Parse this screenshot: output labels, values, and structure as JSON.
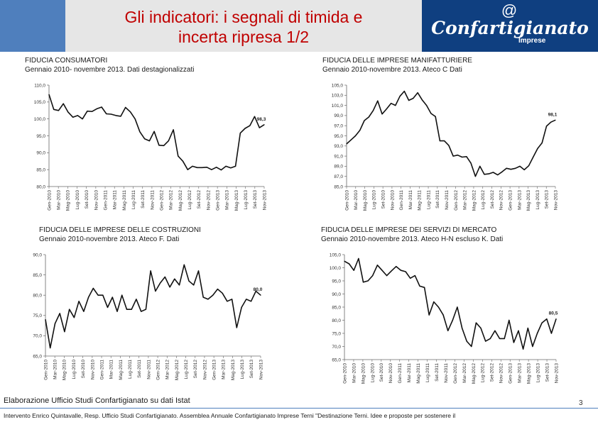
{
  "header": {
    "title": "Gli indicatori: i segnali di timida e\nincerta ripresa 1/2",
    "logo_symbol": "@",
    "logo_text": "Confartigianato",
    "logo_subtext": "Imprese"
  },
  "captions": [
    "FIDUCIA CONSUMATORI\nGennaio 2010- novembre 2013. Dati destagionalizzati",
    "FIDUCIA DELLE IMPRESE MANIFATTURIERE\nGennaio 2010-novembre 2013. Ateco C  Dati",
    "FIDUCIA DELLE IMPRESE DELLE COSTRUZIONI\nGennaio 2010-novembre 2013. Ateco F. Dati",
    "FIDUCIA DELLE IMPRESE DEI SERVIZI DI MERCATO\nGennaio 2010-novembre 2013. Ateco H-N escluso K. Dati"
  ],
  "chart_data": [
    {
      "type": "line",
      "name": "consumatori",
      "x_labels": [
        "Gen-2010",
        "Mar-2010",
        "Mag-2010",
        "Lug-2010",
        "Set-2010",
        "Nov-2010",
        "Gen-2011",
        "Mar-2011",
        "Mag-2011",
        "Lug-2011",
        "Set-2011",
        "Nov-2011",
        "Gen-2012",
        "Mar-2012",
        "Mag-2012",
        "Lug-2012",
        "Set-2012",
        "Nov-2012",
        "Gen-2013",
        "Mar-2013",
        "Mag-2013",
        "Lug-2013",
        "Set-2013",
        "Nov-2013"
      ],
      "values": [
        107.2,
        102.8,
        102.5,
        104.5,
        102.0,
        100.5,
        101.0,
        100.0,
        102.3,
        102.2,
        103.0,
        103.5,
        101.5,
        101.4,
        101.0,
        100.8,
        103.4,
        102.1,
        100.0,
        96.2,
        94.1,
        93.5,
        96.3,
        92.2,
        92.1,
        93.5,
        96.8,
        89.0,
        87.5,
        85.0,
        86.0,
        85.6,
        85.6,
        85.7,
        85.0,
        85.7,
        84.9,
        86.0,
        85.5,
        86.0,
        95.8,
        97.2,
        98.0,
        100.7,
        97.4,
        98.3
      ],
      "last_label": "98,3",
      "y_ticks": [
        "110,0",
        "105,0",
        "100,0",
        "95,0",
        "90,0",
        "85,0",
        "80,0"
      ],
      "ylim": [
        80,
        110
      ]
    },
    {
      "type": "line",
      "name": "manifatturiere",
      "x_labels": [
        "Gen-2010",
        "Mar-2010",
        "Mag-2010",
        "Lug-2010",
        "Set-2010",
        "Nov-2010",
        "Gen-2011",
        "Mar-2011",
        "Mag-2011",
        "Lug-2011",
        "Set-2011",
        "Nov-2011",
        "Gen-2012",
        "Mar-2012",
        "Mag-2012",
        "Lug-2012",
        "Set-2012",
        "Nov-2012",
        "Gen-2013",
        "Mar-2013",
        "Mag-2013",
        "Lug-2013",
        "Set-2013",
        "Nov-2013"
      ],
      "values": [
        93.4,
        94.2,
        95.0,
        96.1,
        98.0,
        98.7,
        100.0,
        101.9,
        99.3,
        100.3,
        101.4,
        101.0,
        102.8,
        103.8,
        102.0,
        102.4,
        103.5,
        102.1,
        101.0,
        99.4,
        98.8,
        94.0,
        94.0,
        93.1,
        91.0,
        91.2,
        90.8,
        90.9,
        89.6,
        87.0,
        89.0,
        87.4,
        87.5,
        87.8,
        87.3,
        87.9,
        88.6,
        88.4,
        88.6,
        89.0,
        88.3,
        89.1,
        90.8,
        92.5,
        93.6,
        96.9,
        97.7,
        98.1
      ],
      "last_label": "98,1",
      "y_ticks": [
        "105,0",
        "103,0",
        "101,0",
        "99,0",
        "97,0",
        "95,0",
        "93,0",
        "91,0",
        "89,0",
        "87,0",
        "85,0"
      ],
      "ylim": [
        85,
        105
      ]
    },
    {
      "type": "line",
      "name": "costruzioni",
      "x_labels": [
        "Gen-2010",
        "Mar-2010",
        "Mag-2010",
        "Lug-2010",
        "Set-2010",
        "Nov-2010",
        "Gen-2011",
        "Mar-2011",
        "Mag-2011",
        "Lug-2011",
        "Set-2011",
        "Nov-2011",
        "Gen-2012",
        "Mar-2012",
        "Mag-2012",
        "Lug-2012",
        "Set-2012",
        "Nov-2012",
        "Gen-2013",
        "Mar-2013",
        "Mag-2013",
        "Lug-2013",
        "Set-2013",
        "Nov-2013"
      ],
      "values": [
        74.0,
        67.0,
        73.0,
        75.5,
        71.0,
        76.5,
        74.5,
        78.5,
        76.0,
        79.5,
        81.7,
        80.0,
        80.0,
        77.0,
        79.5,
        76.0,
        80.0,
        76.5,
        76.5,
        79.0,
        76.0,
        76.5,
        86.0,
        81.0,
        83.0,
        84.5,
        82.0,
        84.0,
        82.5,
        87.5,
        83.5,
        82.5,
        86.0,
        79.5,
        79.0,
        80.0,
        81.5,
        80.5,
        78.5,
        79.0,
        72.0,
        77.0,
        79.0,
        78.5,
        81.0,
        80.0
      ],
      "last_label": "80,0",
      "y_ticks": [
        "90,0",
        "85,0",
        "80,0",
        "75,0",
        "70,0",
        "65,0"
      ],
      "ylim": [
        65,
        90
      ]
    },
    {
      "type": "line",
      "name": "servizi",
      "x_labels": [
        "Gen-2010",
        "Mar-2010",
        "Mag-2010",
        "Lug-2010",
        "Set-2010",
        "Nov-2010",
        "Gen-2011",
        "Mar-2011",
        "Mag-2011",
        "Lug-2011",
        "Set-2011",
        "Nov-2011",
        "Gen-2012",
        "Mar-2012",
        "Mag-2012",
        "Lug-2012",
        "Set-2012",
        "Nov-2012",
        "Gen-2013",
        "Mar-2013",
        "Mag-2013",
        "Lug-2013",
        "Set-2013",
        "Nov-2013"
      ],
      "values": [
        102.5,
        101.5,
        99.0,
        103.5,
        94.5,
        95.0,
        97.0,
        101.0,
        99.0,
        97.0,
        98.8,
        100.5,
        99.0,
        98.5,
        96.0,
        97.0,
        93.0,
        92.5,
        82.0,
        87.0,
        85.0,
        82.0,
        76.0,
        80.0,
        85.0,
        77.0,
        72.0,
        70.0,
        79.0,
        77.0,
        72.0,
        73.0,
        76.0,
        73.0,
        73.0,
        80.0,
        71.5,
        76.0,
        69.0,
        77.0,
        70.0,
        75.0,
        79.0,
        80.5,
        75.0,
        80.5
      ],
      "last_label": "80,5",
      "y_ticks": [
        "105,0",
        "100,0",
        "95,0",
        "90,0",
        "85,0",
        "80,0",
        "75,0",
        "70,0",
        "65,0"
      ],
      "ylim": [
        65,
        105
      ]
    }
  ],
  "source_note": "Elaborazione Ufficio Studi Confartigianato su dati Istat",
  "page_number": "3",
  "footer": "Intervento Enrico Quintavalle, Resp. Ufficio Studi Confartigianato. Assemblea Annuale Confartigianato Imprese Terni \"Destinazione Terni. Idee e proposte per sostenere il"
}
